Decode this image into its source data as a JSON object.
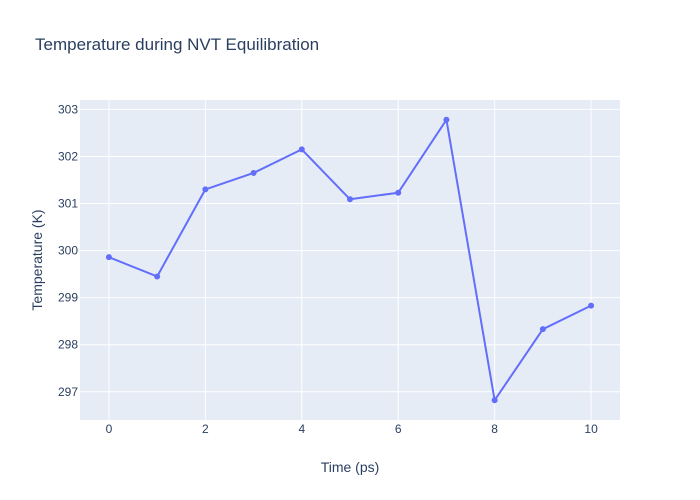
{
  "chart_data": {
    "type": "line",
    "title": "Temperature during NVT Equilibration",
    "xlabel": "Time (ps)",
    "ylabel": "Temperature (K)",
    "xlim": [
      -0.6,
      10.6
    ],
    "ylim": [
      296.4,
      303.2
    ],
    "x_ticks": [
      0,
      2,
      4,
      6,
      8,
      10
    ],
    "y_ticks": [
      297,
      298,
      299,
      300,
      301,
      302,
      303
    ],
    "grid": true,
    "legend": "none",
    "series": [
      {
        "x": [
          0,
          1,
          2,
          3,
          4,
          5,
          6,
          7,
          8,
          9,
          10
        ],
        "y": [
          299.86,
          299.45,
          301.3,
          301.65,
          302.15,
          301.09,
          301.23,
          302.78,
          296.82,
          298.33,
          298.83
        ]
      }
    ],
    "colors": {
      "plot_bg": "#e5ecf6",
      "grid": "#ffffff",
      "line": "#636efa",
      "text": "#2a3f5f"
    }
  }
}
